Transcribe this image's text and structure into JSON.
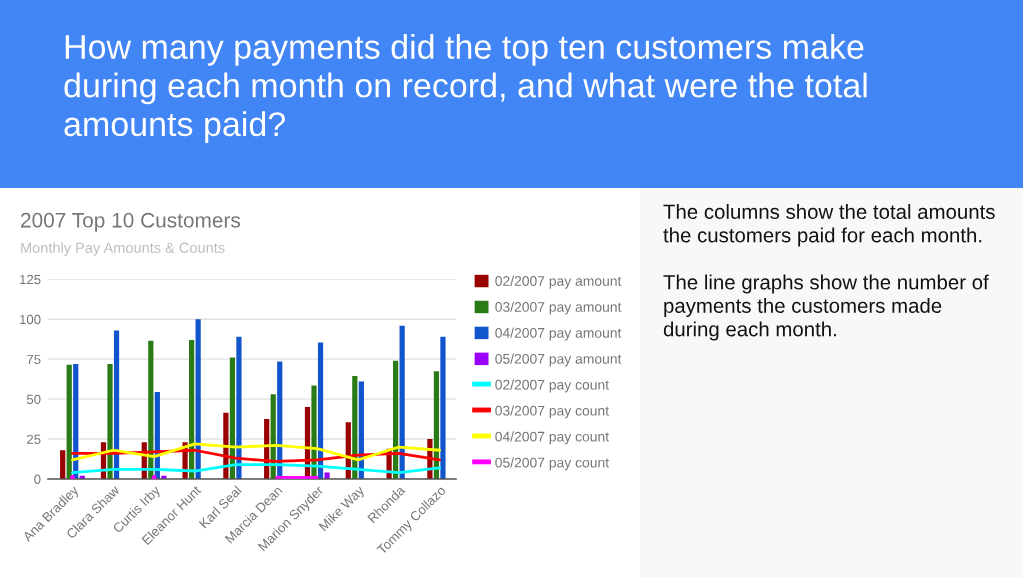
{
  "chart_data": {
    "type": "bar",
    "title": "2007 Top 10 Customers",
    "subtitle": "Monthly Pay Amounts & Counts",
    "annotations": [
      "How many payments did the top ten customers make during each month on record, and what were the total amounts paid?",
      "The columns show the total amounts the customers paid for each month.",
      "The line graphs show the number of payments the customers made during each month."
    ],
    "categories": [
      "Ana Bradley",
      "Clara Shaw",
      "Curtis Irby",
      "Eleanor Hunt",
      "Karl Seal",
      "Marcia Dean",
      "Marion Snyder",
      "Mike Way",
      "Rhonda",
      "Tommy Collazo"
    ],
    "series": [
      {
        "name": "02/2007 pay amount",
        "color": "#990000",
        "values": [
          18,
          23,
          23,
          23,
          41.5,
          37.5,
          45,
          35.5,
          19,
          25
        ]
      },
      {
        "name": "03/2007 pay amount",
        "color": "#2a7b16",
        "values": [
          71.5,
          72,
          86.5,
          87,
          76,
          53,
          58.5,
          64.5,
          74,
          67.5
        ]
      },
      {
        "name": "04/2007 pay amount",
        "color": "#1155cc",
        "values": [
          72,
          93,
          54.5,
          100,
          89,
          73.5,
          85.5,
          61,
          96,
          89
        ]
      },
      {
        "name": "05/2007 pay amount",
        "color": "#9900ff",
        "values": [
          2,
          null,
          2,
          null,
          null,
          null,
          4,
          null,
          null,
          null
        ]
      },
      {
        "name": "02/2007 pay count",
        "type": "line",
        "color": "#00ffff",
        "values": [
          4,
          6,
          6,
          5,
          9,
          9,
          8,
          6,
          4,
          7
        ]
      },
      {
        "name": "03/2007 pay count",
        "type": "line",
        "color": "#ff0000",
        "values": [
          16,
          16,
          17,
          18,
          13,
          11,
          12,
          15,
          16,
          12
        ]
      },
      {
        "name": "04/2007 pay count",
        "type": "line",
        "color": "#ffff00",
        "values": [
          12,
          18,
          14,
          22,
          20,
          21,
          19,
          12,
          20,
          18
        ]
      },
      {
        "name": "05/2007 pay count",
        "type": "line",
        "color": "#ff00ff",
        "values": [
          1,
          null,
          1,
          null,
          null,
          1,
          1,
          null,
          null,
          null
        ]
      }
    ],
    "ylim": [
      0,
      125
    ],
    "yticks": [
      0,
      25,
      50,
      75,
      100,
      125
    ],
    "grid": "y",
    "legend": "right"
  }
}
